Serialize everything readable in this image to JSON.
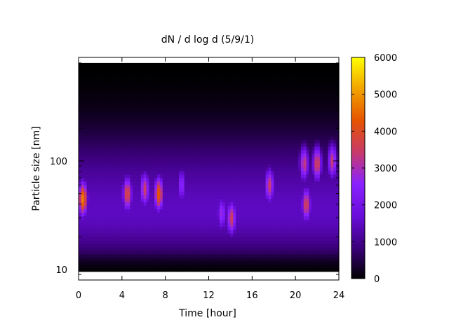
{
  "chart_data": {
    "type": "heatmap",
    "title": "dN / d log d (5/9/1)",
    "xlabel": "Time [hour]",
    "ylabel": "Particle size [nm]",
    "xlim": [
      0,
      24
    ],
    "ylim": [
      8,
      900
    ],
    "y_scale": "log",
    "x_ticks": [
      0,
      4,
      8,
      12,
      16,
      20,
      24
    ],
    "y_ticks": [
      10,
      100
    ],
    "colorbar": {
      "range": [
        0,
        6000
      ],
      "ticks": [
        0,
        1000,
        2000,
        3000,
        4000,
        5000,
        6000
      ],
      "colormap": [
        "#000000",
        "#3c007d",
        "#6a0ddb",
        "#8a22ff",
        "#c93a6a",
        "#e65300",
        "#f2a200",
        "#ffff00"
      ]
    },
    "baseline": 1200,
    "lower_edge_nm": 9.6,
    "upper_edge_nm": 800,
    "hotspots": [
      {
        "t": 0.4,
        "dp": 45,
        "value": 4800
      },
      {
        "t": 4.5,
        "dp": 50,
        "value": 3900
      },
      {
        "t": 6.1,
        "dp": 55,
        "value": 3500
      },
      {
        "t": 7.4,
        "dp": 50,
        "value": 4300
      },
      {
        "t": 9.5,
        "dp": 60,
        "value": 2600
      },
      {
        "t": 13.2,
        "dp": 33,
        "value": 2800
      },
      {
        "t": 14.1,
        "dp": 30,
        "value": 3600
      },
      {
        "t": 17.6,
        "dp": 60,
        "value": 3500
      },
      {
        "t": 21.0,
        "dp": 40,
        "value": 3700
      },
      {
        "t": 20.8,
        "dp": 95,
        "value": 3400
      },
      {
        "t": 22.0,
        "dp": 95,
        "value": 3700
      },
      {
        "t": 23.4,
        "dp": 100,
        "value": 3400
      }
    ]
  }
}
